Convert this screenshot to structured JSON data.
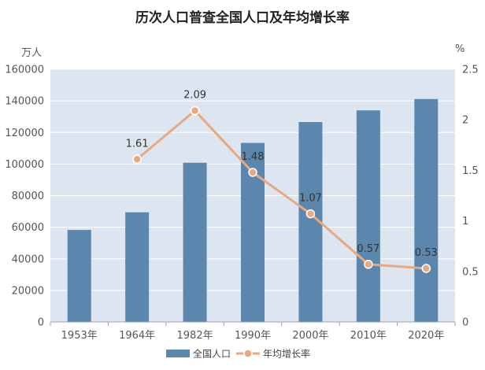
{
  "chart_data": {
    "type": "bar+line",
    "title": "历次人口普查全国人口及年均增长率",
    "categories": [
      "1953年",
      "1964年",
      "1982年",
      "1990年",
      "2000年",
      "2010年",
      "2020年"
    ],
    "series": [
      {
        "name": "全国人口",
        "type": "bar",
        "axis": "left",
        "values": [
          58260,
          69458,
          100818,
          113368,
          126583,
          133972,
          141178
        ],
        "color": "#5b86ad"
      },
      {
        "name": "年均增长率",
        "type": "line",
        "axis": "right",
        "values": [
          null,
          1.61,
          2.09,
          1.48,
          1.07,
          0.57,
          0.53
        ],
        "labels": [
          "",
          "1.61",
          "2.09",
          "1.48",
          "1.07",
          "0.57",
          "0.53"
        ],
        "color": "#e8a882"
      }
    ],
    "y_left": {
      "unit": "万人",
      "range": [
        0,
        160000
      ],
      "ticks": [
        "0",
        "20000",
        "40000",
        "60000",
        "80000",
        "100000",
        "120000",
        "140000",
        "160000"
      ]
    },
    "y_right": {
      "unit": "%",
      "range": [
        0,
        2.5
      ],
      "ticks": [
        "0",
        "0.5",
        "1",
        "1.5",
        "2",
        "2.5"
      ]
    },
    "legend": {
      "position": "bottom",
      "items": [
        "全国人口",
        "年均增长率"
      ]
    },
    "grid": true
  }
}
